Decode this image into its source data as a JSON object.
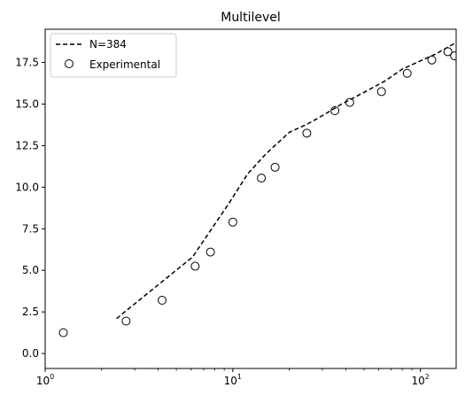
{
  "chart_data": {
    "type": "scatter",
    "title": "Multilevel",
    "xlabel": "",
    "ylabel": "",
    "xscale": "log",
    "xlim": [
      1,
      155
    ],
    "ylim": [
      -0.9,
      19.5
    ],
    "xticks": [
      {
        "value": 1,
        "base": "10",
        "exp": "0"
      },
      {
        "value": 10,
        "base": "10",
        "exp": "1"
      },
      {
        "value": 100,
        "base": "10",
        "exp": "2"
      }
    ],
    "yticks": [
      "0.0",
      "2.5",
      "5.0",
      "7.5",
      "10.0",
      "12.5",
      "15.0",
      "17.5"
    ],
    "grid": false,
    "legend_position": "upper-left",
    "series": [
      {
        "name": "N=384",
        "style": "dashed-line",
        "color": "#000000",
        "x": [
          2.4,
          6.1,
          9.5,
          12.0,
          15.0,
          20.0,
          25.0,
          30.0,
          38.0,
          50.0,
          65.0,
          80.0,
          100.0,
          120.0,
          155.0
        ],
        "y": [
          2.1,
          5.8,
          9.0,
          10.8,
          12.0,
          13.3,
          13.8,
          14.3,
          15.0,
          15.7,
          16.4,
          17.1,
          17.6,
          18.0,
          18.7
        ]
      },
      {
        "name": "Experimental",
        "style": "open-circle",
        "color": "#000000",
        "x": [
          1.25,
          2.7,
          4.2,
          6.3,
          7.6,
          10.0,
          14.2,
          16.8,
          24.8,
          35.0,
          42.0,
          62.0,
          85.0,
          115.0,
          140.0,
          152.0
        ],
        "y": [
          1.25,
          1.95,
          3.2,
          5.25,
          6.1,
          7.9,
          10.55,
          11.2,
          13.25,
          14.6,
          15.1,
          15.75,
          16.85,
          17.65,
          18.15,
          17.9
        ]
      }
    ]
  }
}
